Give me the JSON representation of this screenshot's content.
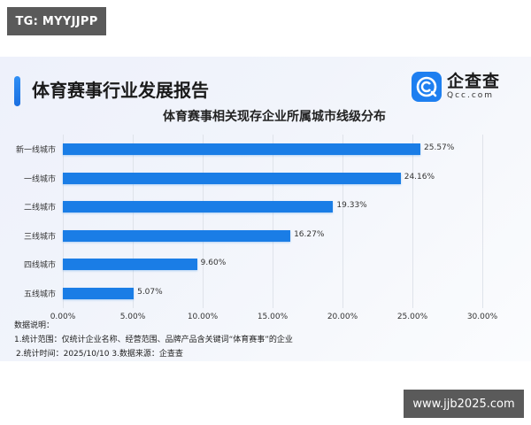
{
  "watermarks": {
    "top": "TG: MYYJJPP",
    "bottom": "www.jjb2025.com"
  },
  "header": {
    "title": "体育赛事行业发展报告",
    "logo_cn": "企查查",
    "logo_en": "Qcc.com"
  },
  "chart_data": {
    "type": "bar",
    "orientation": "horizontal",
    "title": "体育赛事相关现存企业所属城市线级分布",
    "categories": [
      "新一线城市",
      "一线城市",
      "二线城市",
      "三线城市",
      "四线城市",
      "五线城市"
    ],
    "values": [
      25.57,
      24.16,
      19.33,
      16.27,
      9.6,
      5.07
    ],
    "value_labels": [
      "25.57%",
      "24.16%",
      "19.33%",
      "16.27%",
      "9.60%",
      "5.07%"
    ],
    "xlabel": "",
    "ylabel": "",
    "xlim": [
      0,
      30
    ],
    "x_ticks": [
      "0.00%",
      "5.00%",
      "10.00%",
      "15.00%",
      "20.00%",
      "25.00%",
      "30.00%"
    ],
    "grid": true,
    "legend": null,
    "bar_color": "#1a7de6"
  },
  "notes": {
    "heading": "数据说明：",
    "line1": "1.统计范围：仅统计企业名称、经营范围、品牌产品含关键词“体育赛事”的企业",
    "line2": "2.统计时间：2025/10/10  3.数据来源：企查查"
  }
}
